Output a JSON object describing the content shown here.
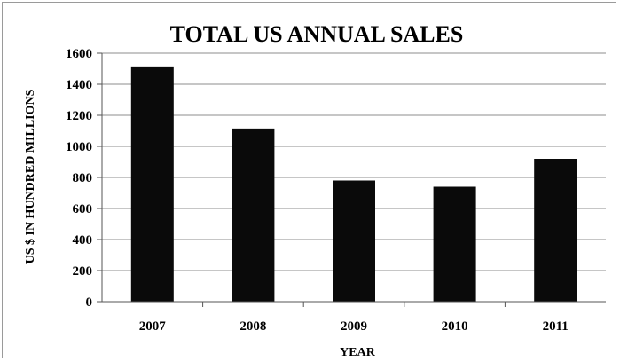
{
  "chart_data": {
    "type": "bar",
    "title": "TOTAL US ANNUAL SALES",
    "xlabel": "YEAR",
    "ylabel": "US $ IN HUNDRED MILLIONS",
    "categories": [
      "2007",
      "2008",
      "2009",
      "2010",
      "2011"
    ],
    "values": [
      1515,
      1115,
      780,
      740,
      920
    ],
    "ylim": [
      0,
      1600
    ],
    "yticks": [
      "0",
      "200",
      "400",
      "600",
      "800",
      "1000",
      "1200",
      "1400",
      "1600"
    ],
    "grid": true,
    "legend": "none",
    "bar_color": "#0a0a0a",
    "grid_color": "#8c8c8c"
  }
}
